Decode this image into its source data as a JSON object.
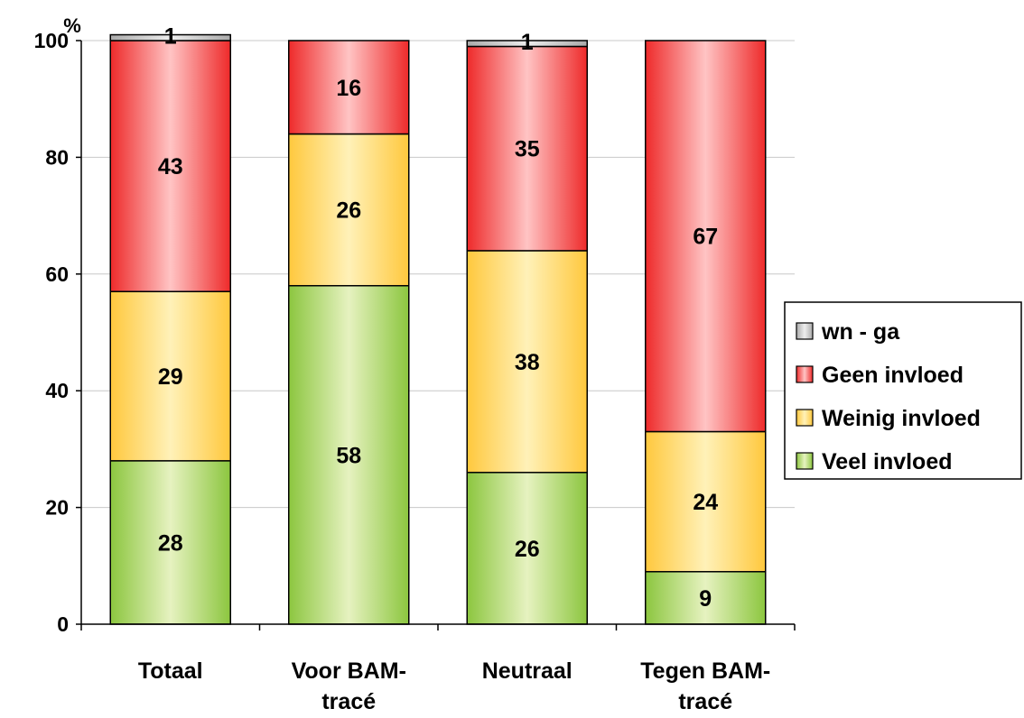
{
  "chart_data": {
    "type": "bar",
    "stacked": true,
    "ylabel": "%",
    "ylim": [
      0,
      100
    ],
    "yticks": [
      0,
      20,
      40,
      60,
      80,
      100
    ],
    "grid": true,
    "legend_position": "right",
    "categories": [
      [
        "Totaal"
      ],
      [
        "Voor BAM-",
        "tracé"
      ],
      [
        "Neutraal"
      ],
      [
        "Tegen BAM-",
        "tracé"
      ]
    ],
    "series": [
      {
        "name": "Veel invloed",
        "values": [
          28,
          58,
          26,
          9
        ],
        "colors": [
          "#8cc63f",
          "#e6f2c0"
        ]
      },
      {
        "name": "Weinig invloed",
        "values": [
          29,
          26,
          38,
          24
        ],
        "colors": [
          "#ffc83d",
          "#fff1b8"
        ]
      },
      {
        "name": "Geen invloed",
        "values": [
          43,
          16,
          35,
          67
        ],
        "colors": [
          "#ee2a2a",
          "#ffc4c4"
        ]
      },
      {
        "name": "wn - ga",
        "values": [
          1,
          0,
          1,
          0
        ],
        "colors": [
          "#aaaaaa",
          "#eeeeee"
        ]
      }
    ],
    "data_labels": [
      [
        28,
        58,
        26,
        9
      ],
      [
        29,
        26,
        38,
        24
      ],
      [
        43,
        16,
        35,
        67
      ],
      [
        1,
        null,
        1,
        null
      ]
    ]
  }
}
